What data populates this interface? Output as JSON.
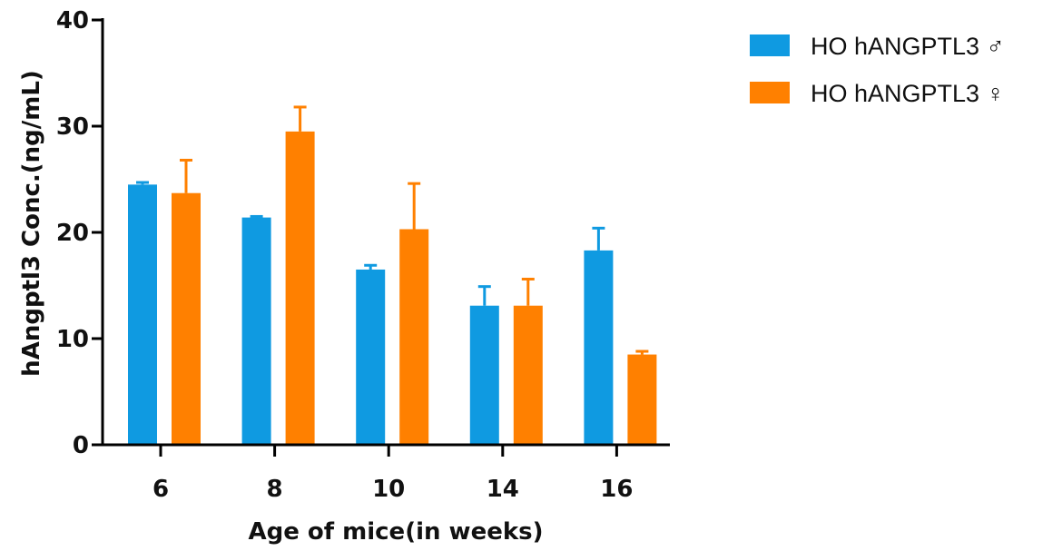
{
  "chart_data": {
    "type": "bar",
    "title": "",
    "xlabel": "Age of mice(in weeks)",
    "ylabel": "hAngptl3 Conc.(ng/mL)",
    "categories": [
      "6",
      "8",
      "10",
      "14",
      "16"
    ],
    "ylim": [
      0,
      40
    ],
    "yticks": [
      0,
      10,
      20,
      30,
      40
    ],
    "grid": false,
    "legend_position": "top-right",
    "series": [
      {
        "name": "HO hANGPTL3 ♂",
        "color": "#0f9ae1",
        "values": [
          24.5,
          21.4,
          16.5,
          13.1,
          18.3
        ],
        "errors": [
          0.2,
          0.1,
          0.4,
          1.8,
          2.1
        ]
      },
      {
        "name": "HO hANGPTL3 ♀",
        "color": "#ff8000",
        "values": [
          23.7,
          29.5,
          20.3,
          13.1,
          8.5
        ],
        "errors": [
          3.1,
          2.3,
          4.3,
          2.5,
          0.3
        ]
      }
    ]
  }
}
